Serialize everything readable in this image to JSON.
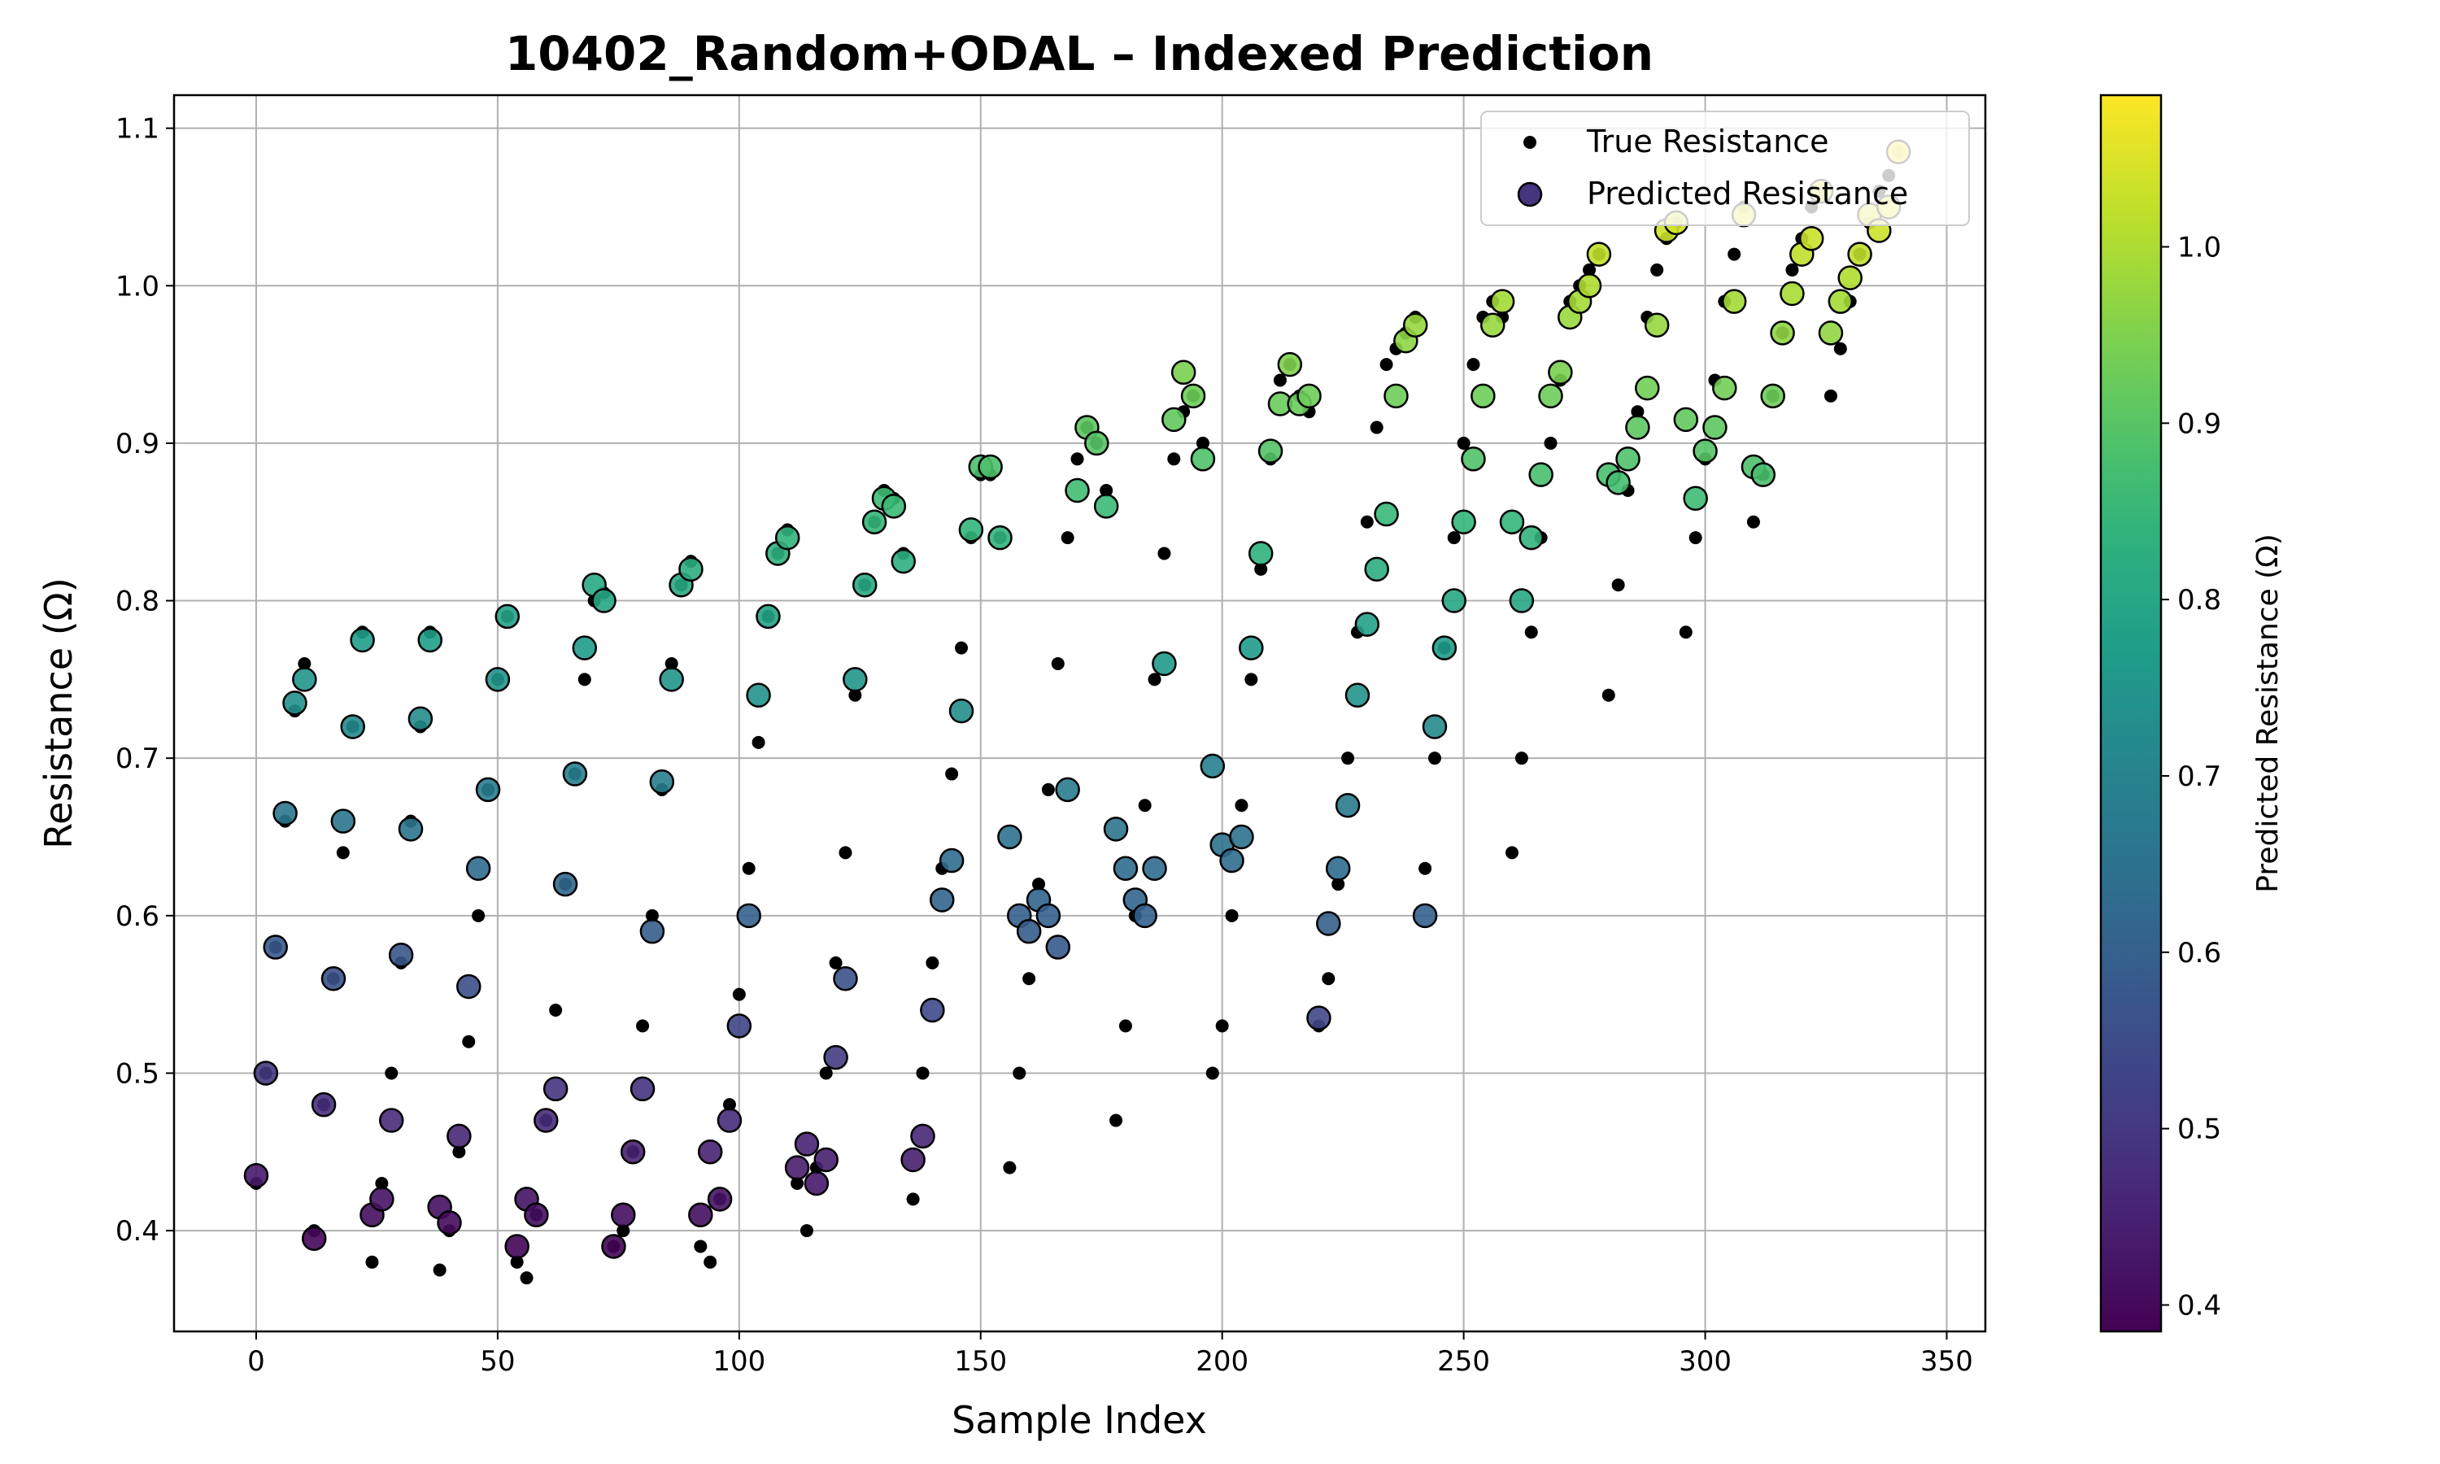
{
  "chart_data": {
    "type": "scatter",
    "title": "10402_Random+ODAL – Indexed Prediction",
    "x_label": "Sample Index",
    "y_label": "Resistance (Ω)",
    "colorbar_label": "Predicted Resistance (Ω)",
    "colormap": "viridis",
    "grid": true,
    "legend": "upper right",
    "xlim": [
      -17,
      358
    ],
    "ylim": [
      0.336,
      1.121
    ],
    "clim": [
      0.385,
      1.086
    ],
    "xticks": [
      0,
      50,
      100,
      150,
      200,
      250,
      300,
      350
    ],
    "yticks": [
      0.4,
      0.5,
      0.6,
      0.7,
      0.8,
      0.9,
      {
        "value": 1,
        "label": "1.0"
      },
      1.1
    ],
    "cticks": [
      0.4,
      0.5,
      0.6,
      0.7,
      0.8,
      0.9,
      {
        "value": 1,
        "label": "1.0"
      }
    ],
    "x": [
      0,
      2,
      4,
      6,
      8,
      10,
      12,
      14,
      16,
      18,
      20,
      22,
      24,
      26,
      28,
      30,
      32,
      34,
      36,
      38,
      40,
      42,
      44,
      46,
      48,
      50,
      52,
      54,
      56,
      58,
      60,
      62,
      64,
      66,
      68,
      70,
      72,
      74,
      76,
      78,
      80,
      82,
      84,
      86,
      88,
      90,
      92,
      94,
      96,
      98,
      100,
      102,
      104,
      106,
      108,
      110,
      112,
      114,
      116,
      118,
      120,
      122,
      124,
      126,
      128,
      130,
      132,
      134,
      136,
      138,
      140,
      142,
      144,
      146,
      148,
      150,
      152,
      154,
      156,
      158,
      160,
      162,
      164,
      166,
      168,
      170,
      172,
      174,
      176,
      178,
      180,
      182,
      184,
      186,
      188,
      190,
      192,
      194,
      196,
      198,
      200,
      202,
      204,
      206,
      208,
      210,
      212,
      214,
      216,
      218,
      220,
      222,
      224,
      226,
      228,
      230,
      232,
      234,
      236,
      238,
      240,
      242,
      244,
      246,
      248,
      250,
      252,
      254,
      256,
      258,
      260,
      262,
      264,
      266,
      268,
      270,
      272,
      274,
      276,
      278,
      280,
      282,
      284,
      286,
      288,
      290,
      292,
      294,
      296,
      298,
      300,
      302,
      304,
      306,
      308,
      310,
      312,
      314,
      316,
      318,
      320,
      322,
      324,
      326,
      328,
      330,
      332,
      334,
      336,
      338,
      340
    ],
    "series": [
      {
        "name": "True Resistance",
        "color": "#000000",
        "values": [
          0.43,
          0.5,
          0.58,
          0.66,
          0.73,
          0.76,
          0.4,
          0.48,
          0.56,
          0.64,
          0.72,
          0.78,
          0.38,
          0.43,
          0.5,
          0.57,
          0.66,
          0.72,
          0.78,
          0.375,
          0.4,
          0.45,
          0.52,
          0.6,
          0.68,
          0.75,
          0.79,
          0.38,
          0.37,
          0.41,
          0.47,
          0.54,
          0.62,
          0.69,
          0.75,
          0.8,
          0.805,
          0.39,
          0.4,
          0.45,
          0.53,
          0.6,
          0.68,
          0.76,
          0.81,
          0.825,
          0.39,
          0.38,
          0.42,
          0.48,
          0.55,
          0.63,
          0.71,
          0.79,
          0.83,
          0.845,
          0.43,
          0.4,
          0.44,
          0.5,
          0.57,
          0.64,
          0.74,
          0.81,
          0.85,
          0.87,
          0.865,
          0.83,
          0.42,
          0.5,
          0.57,
          0.63,
          0.69,
          0.77,
          0.84,
          0.88,
          0.88,
          0.84,
          0.44,
          0.5,
          0.56,
          0.62,
          0.68,
          0.76,
          0.84,
          0.89,
          0.91,
          0.9,
          0.87,
          0.47,
          0.53,
          0.6,
          0.67,
          0.75,
          0.83,
          0.89,
          0.92,
          0.93,
          0.9,
          0.5,
          0.53,
          0.6,
          0.67,
          0.75,
          0.82,
          0.89,
          0.94,
          0.95,
          0.93,
          0.92,
          0.53,
          0.56,
          0.62,
          0.7,
          0.78,
          0.85,
          0.91,
          0.95,
          0.96,
          0.97,
          0.98,
          0.63,
          0.7,
          0.77,
          0.84,
          0.9,
          0.95,
          0.98,
          0.99,
          0.98,
          0.64,
          0.7,
          0.78,
          0.84,
          0.9,
          0.94,
          0.99,
          1.0,
          1.01,
          1.02,
          0.74,
          0.81,
          0.87,
          0.92,
          0.98,
          1.01,
          1.03,
          1.04,
          0.78,
          0.84,
          0.89,
          0.94,
          0.99,
          1.02,
          1.05,
          0.85,
          0.88,
          0.93,
          0.97,
          1.01,
          1.03,
          1.05,
          1.06,
          0.93,
          0.96,
          0.99,
          1.02,
          1.04,
          1.06,
          1.07,
          1.085
        ]
      },
      {
        "name": "Predicted Resistance",
        "values": [
          0.435,
          0.5,
          0.58,
          0.665,
          0.735,
          0.75,
          0.395,
          0.48,
          0.56,
          0.66,
          0.72,
          0.775,
          0.41,
          0.42,
          0.47,
          0.575,
          0.655,
          0.725,
          0.775,
          0.415,
          0.405,
          0.46,
          0.555,
          0.63,
          0.68,
          0.75,
          0.79,
          0.39,
          0.42,
          0.41,
          0.47,
          0.49,
          0.62,
          0.69,
          0.77,
          0.81,
          0.8,
          0.39,
          0.41,
          0.45,
          0.49,
          0.59,
          0.685,
          0.75,
          0.81,
          0.82,
          0.41,
          0.45,
          0.42,
          0.47,
          0.53,
          0.6,
          0.74,
          0.79,
          0.83,
          0.84,
          0.44,
          0.455,
          0.43,
          0.445,
          0.51,
          0.56,
          0.75,
          0.81,
          0.85,
          0.865,
          0.86,
          0.825,
          0.445,
          0.46,
          0.54,
          0.61,
          0.635,
          0.73,
          0.845,
          0.885,
          0.885,
          0.84,
          0.65,
          0.6,
          0.59,
          0.61,
          0.6,
          0.58,
          0.68,
          0.87,
          0.91,
          0.9,
          0.86,
          0.655,
          0.63,
          0.61,
          0.6,
          0.63,
          0.76,
          0.915,
          0.945,
          0.93,
          0.89,
          0.695,
          0.645,
          0.635,
          0.65,
          0.77,
          0.83,
          0.895,
          0.925,
          0.95,
          0.925,
          0.93,
          0.535,
          0.595,
          0.63,
          0.67,
          0.74,
          0.785,
          0.82,
          0.855,
          0.93,
          0.965,
          0.975,
          0.6,
          0.72,
          0.77,
          0.8,
          0.85,
          0.89,
          0.93,
          0.975,
          0.99,
          0.85,
          0.8,
          0.84,
          0.88,
          0.93,
          0.945,
          0.98,
          0.99,
          1.0,
          1.02,
          0.88,
          0.875,
          0.89,
          0.91,
          0.935,
          0.975,
          1.035,
          1.04,
          0.915,
          0.865,
          0.895,
          0.91,
          0.935,
          0.99,
          1.045,
          0.885,
          0.88,
          0.93,
          0.97,
          0.995,
          1.02,
          1.03,
          1.06,
          0.97,
          0.99,
          1.005,
          1.02,
          1.045,
          1.035,
          1.05,
          1.085
        ]
      }
    ]
  }
}
